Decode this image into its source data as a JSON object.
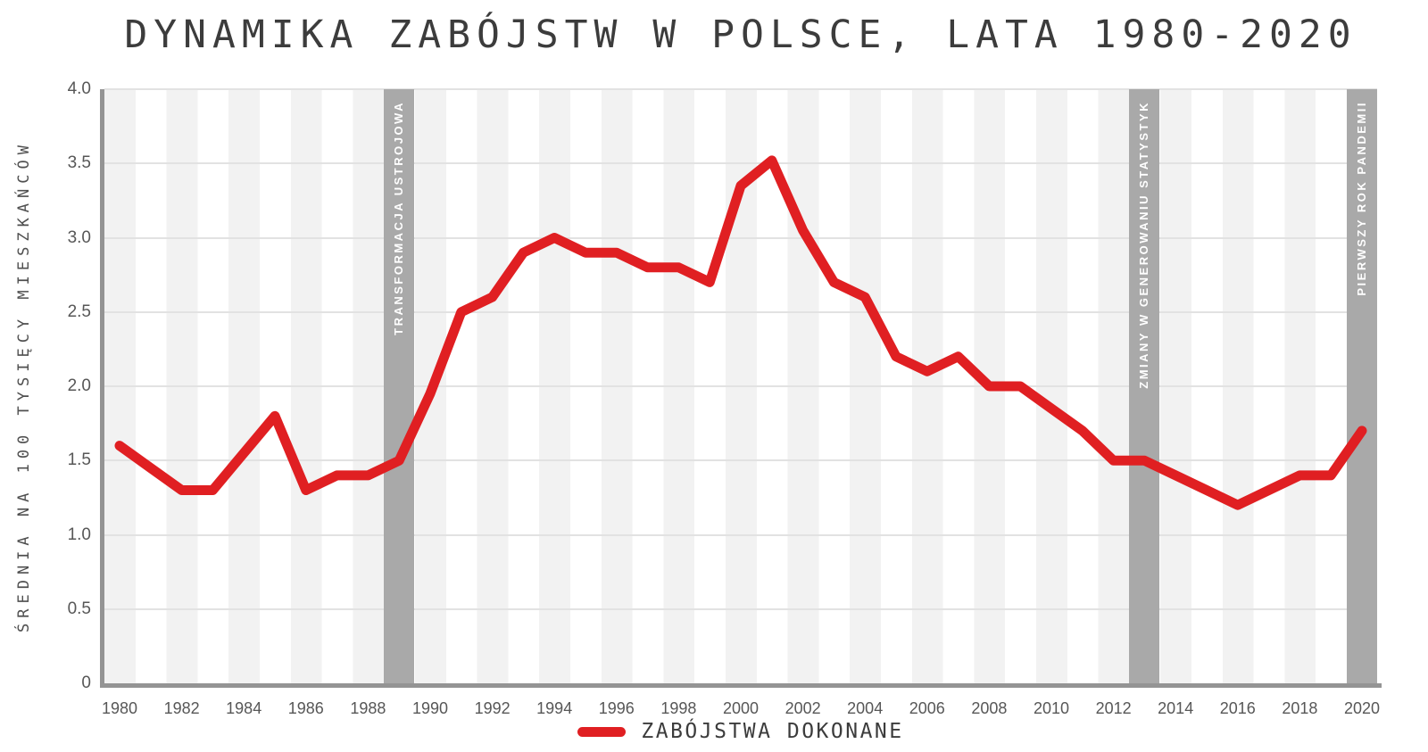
{
  "title": "DYNAMIKA ZABÓJSTW W POLSCE, LATA 1980-2020",
  "chart_data": {
    "type": "line",
    "title": "DYNAMIKA ZABÓJSTW W POLSCE, LATA 1980-2020",
    "ylabel": "ŚREDNIA NA 100 TYSIĘCY MIESZKAŃCÓW",
    "xlabel": "",
    "ylim": [
      0,
      4.0
    ],
    "ytick_step": 0.5,
    "ytick_labels": [
      "0",
      "0.5",
      "1.0",
      "1.5",
      "2.0",
      "2.5",
      "3.0",
      "3.5",
      "4.0"
    ],
    "xtick_step": 2,
    "grid": true,
    "legend_position": "bottom",
    "x": [
      1980,
      1981,
      1982,
      1983,
      1984,
      1985,
      1986,
      1987,
      1988,
      1989,
      1990,
      1991,
      1992,
      1993,
      1994,
      1995,
      1996,
      1997,
      1998,
      1999,
      2000,
      2001,
      2002,
      2003,
      2004,
      2005,
      2006,
      2007,
      2008,
      2009,
      2010,
      2011,
      2012,
      2013,
      2014,
      2015,
      2016,
      2017,
      2018,
      2019,
      2020
    ],
    "series": [
      {
        "name": "ZABÓJSTWA DOKONANE",
        "color": "#e01f22",
        "values": [
          1.6,
          1.45,
          1.3,
          1.3,
          1.55,
          1.8,
          1.3,
          1.4,
          1.4,
          1.5,
          1.95,
          2.5,
          2.6,
          2.9,
          3.0,
          2.9,
          2.9,
          2.8,
          2.8,
          2.7,
          3.35,
          3.52,
          3.05,
          2.7,
          2.6,
          2.2,
          2.1,
          2.2,
          2.0,
          2.0,
          1.85,
          1.7,
          1.5,
          1.5,
          1.4,
          1.3,
          1.2,
          1.3,
          1.4,
          1.4,
          1.7
        ]
      }
    ],
    "annotations": [
      {
        "year": 1989,
        "label": "TRANSFORMACJA USTROJOWA"
      },
      {
        "year": 2013,
        "label": "ZMIANY W GENEROWANIU STATYSTYK"
      },
      {
        "year": 2020,
        "label": "PIERWSZY ROK PANDEMII"
      }
    ]
  },
  "legend": {
    "label": "ZABÓJSTWA DOKONANE"
  },
  "colors": {
    "line": "#e01f22",
    "band": "#a9a9a9",
    "band_text": "#ffffff",
    "stripe": "#f2f2f2",
    "gridline": "#e2e2e2",
    "axis": "#949494",
    "title_text": "#3c3c3c",
    "tick_text": "#575757"
  }
}
